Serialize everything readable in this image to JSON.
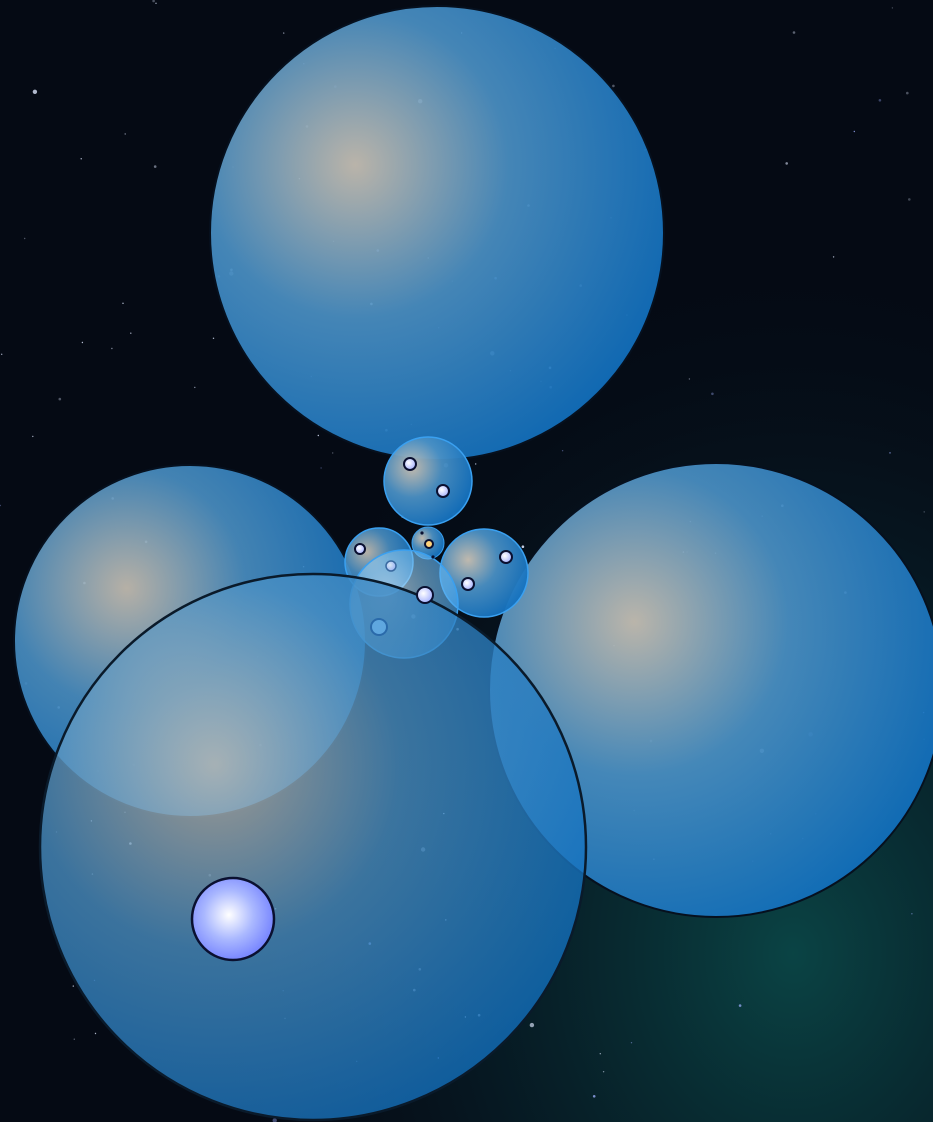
{
  "game": {
    "background": {
      "base_color": "#050a14",
      "nebula_color": "#0b4a4a",
      "star_color": "#dfe8ff"
    },
    "colors": {
      "cell_edge": "#0f6fbf",
      "cell_mid": "#4a90c4",
      "cell_core": "#c9c2b6",
      "cell_light": "#9fd0f0",
      "cell_bright": "#3aa0f0",
      "player_core": "#ffffff",
      "player_edge": "#6f7dff",
      "mote_fill": "#b8c8ff",
      "mote_stroke": "#0a1030",
      "mote_special": "#ffd27a"
    },
    "entities": {
      "large_cells": 4,
      "medium_cells": 4,
      "small_cells": 2,
      "player": 1,
      "motes": 12
    }
  }
}
